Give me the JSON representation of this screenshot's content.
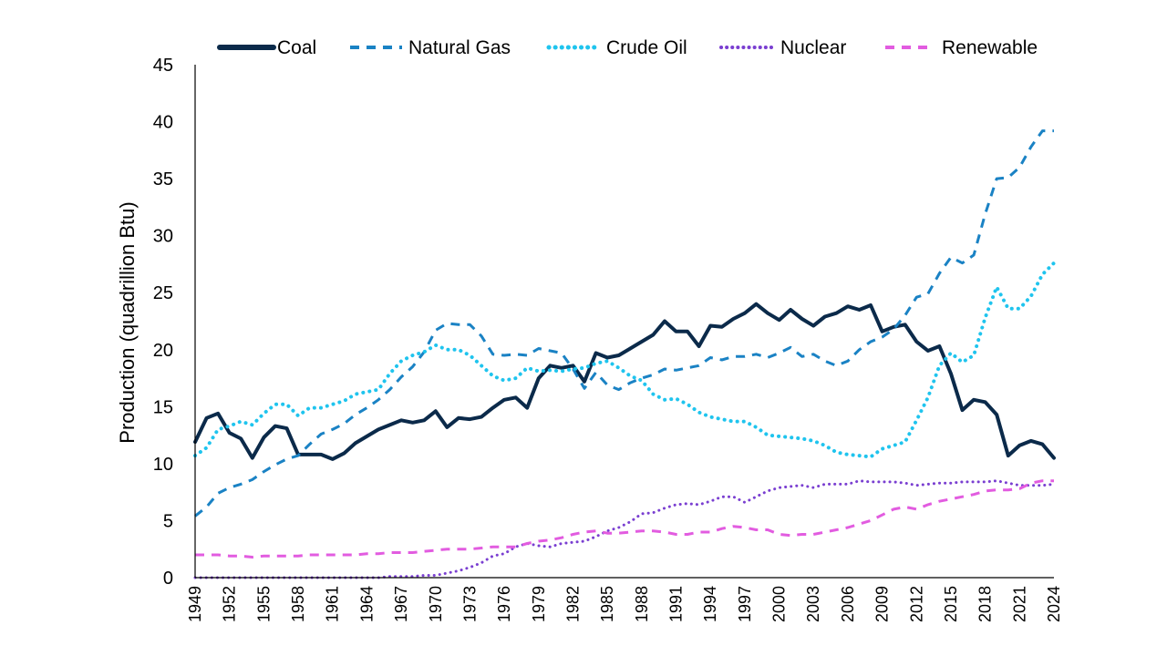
{
  "chart_data": {
    "type": "line",
    "title": "",
    "xlabel": "",
    "ylabel": "Production (quadrillion Btu)",
    "xlim": [
      1949,
      2024
    ],
    "ylim": [
      0,
      45
    ],
    "yticks": [
      0,
      5,
      10,
      15,
      20,
      25,
      30,
      35,
      40,
      45
    ],
    "xticks": [
      1949,
      1952,
      1955,
      1958,
      1961,
      1964,
      1967,
      1970,
      1973,
      1976,
      1979,
      1982,
      1985,
      1988,
      1991,
      1994,
      1997,
      2000,
      2003,
      2006,
      2009,
      2012,
      2015,
      2018,
      2021,
      2024
    ],
    "grid": false,
    "legend_position": "top",
    "x": [
      1949,
      1950,
      1951,
      1952,
      1953,
      1954,
      1955,
      1956,
      1957,
      1958,
      1959,
      1960,
      1961,
      1962,
      1963,
      1964,
      1965,
      1966,
      1967,
      1968,
      1969,
      1970,
      1971,
      1972,
      1973,
      1974,
      1975,
      1976,
      1977,
      1978,
      1979,
      1980,
      1981,
      1982,
      1983,
      1984,
      1985,
      1986,
      1987,
      1988,
      1989,
      1990,
      1991,
      1992,
      1993,
      1994,
      1995,
      1996,
      1997,
      1998,
      1999,
      2000,
      2001,
      2002,
      2003,
      2004,
      2005,
      2006,
      2007,
      2008,
      2009,
      2010,
      2011,
      2012,
      2013,
      2014,
      2015,
      2016,
      2017,
      2018,
      2019,
      2020,
      2021,
      2022,
      2023,
      2024
    ],
    "series": [
      {
        "name": "Coal",
        "color": "#0b2a4a",
        "dash": "solid",
        "values": [
          11.9,
          14.0,
          14.4,
          12.7,
          12.2,
          10.5,
          12.3,
          13.3,
          13.1,
          10.8,
          10.8,
          10.8,
          10.4,
          10.9,
          11.8,
          12.4,
          13.0,
          13.4,
          13.8,
          13.6,
          13.8,
          14.6,
          13.2,
          14.0,
          13.9,
          14.1,
          14.9,
          15.6,
          15.8,
          14.9,
          17.5,
          18.6,
          18.4,
          18.6,
          17.2,
          19.7,
          19.3,
          19.5,
          20.1,
          20.7,
          21.3,
          22.5,
          21.6,
          21.6,
          20.3,
          22.1,
          22.0,
          22.7,
          23.2,
          24.0,
          23.2,
          22.6,
          23.5,
          22.7,
          22.1,
          22.9,
          23.2,
          23.8,
          23.5,
          23.9,
          21.6,
          22.0,
          22.2,
          20.7,
          19.9,
          20.3,
          17.9,
          14.7,
          15.6,
          15.4,
          14.3,
          10.7,
          11.6,
          12.0,
          11.7,
          10.5
        ]
      },
      {
        "name": "Natural Gas",
        "color": "#1a82c4",
        "dash": "dashed",
        "values": [
          5.4,
          6.2,
          7.4,
          7.9,
          8.2,
          8.6,
          9.3,
          9.9,
          10.4,
          10.7,
          11.7,
          12.6,
          13.0,
          13.5,
          14.3,
          14.9,
          15.6,
          16.5,
          17.6,
          18.5,
          19.8,
          21.7,
          22.3,
          22.2,
          22.2,
          21.2,
          19.6,
          19.5,
          19.6,
          19.5,
          20.1,
          19.9,
          19.7,
          18.3,
          16.6,
          18.0,
          16.9,
          16.5,
          17.1,
          17.5,
          17.8,
          18.3,
          18.2,
          18.4,
          18.6,
          19.3,
          19.1,
          19.4,
          19.4,
          19.6,
          19.3,
          19.7,
          20.2,
          19.4,
          19.6,
          19.0,
          18.6,
          19.0,
          20.0,
          20.7,
          21.1,
          21.8,
          23.0,
          24.6,
          24.9,
          26.7,
          28.1,
          27.6,
          28.3,
          31.9,
          35.0,
          35.1,
          36.0,
          37.8,
          39.2,
          39.2
        ]
      },
      {
        "name": "Crude Oil",
        "color": "#1fc4ee",
        "dash": "dotted",
        "values": [
          10.7,
          11.4,
          13.0,
          13.3,
          13.7,
          13.4,
          14.4,
          15.2,
          15.2,
          14.2,
          14.9,
          14.9,
          15.2,
          15.5,
          16.1,
          16.3,
          16.5,
          17.9,
          19.0,
          19.5,
          19.8,
          20.4,
          20.0,
          20.0,
          19.5,
          18.6,
          17.7,
          17.3,
          17.5,
          18.4,
          18.1,
          18.2,
          18.1,
          18.3,
          18.4,
          18.8,
          19.0,
          18.4,
          17.7,
          17.3,
          16.1,
          15.6,
          15.7,
          15.2,
          14.5,
          14.1,
          13.9,
          13.7,
          13.7,
          13.2,
          12.5,
          12.4,
          12.3,
          12.2,
          12.0,
          11.6,
          11.0,
          10.8,
          10.7,
          10.6,
          11.3,
          11.6,
          11.9,
          13.8,
          15.8,
          18.6,
          19.7,
          18.9,
          19.5,
          22.8,
          25.5,
          23.6,
          23.6,
          24.7,
          26.6,
          27.6
        ]
      },
      {
        "name": "Nuclear",
        "color": "#7a3fd1",
        "dash": "dotted",
        "values": [
          0,
          0,
          0,
          0,
          0,
          0,
          0,
          0,
          0,
          0,
          0,
          0,
          0,
          0,
          0,
          0,
          0,
          0.1,
          0.1,
          0.1,
          0.2,
          0.2,
          0.4,
          0.6,
          0.9,
          1.3,
          1.9,
          2.1,
          2.7,
          3.0,
          2.8,
          2.7,
          3.0,
          3.1,
          3.2,
          3.6,
          4.1,
          4.4,
          4.9,
          5.6,
          5.7,
          6.1,
          6.4,
          6.5,
          6.4,
          6.7,
          7.1,
          7.1,
          6.6,
          7.1,
          7.6,
          7.9,
          8.0,
          8.1,
          7.9,
          8.2,
          8.2,
          8.2,
          8.5,
          8.4,
          8.4,
          8.4,
          8.3,
          8.1,
          8.2,
          8.3,
          8.3,
          8.4,
          8.4,
          8.4,
          8.5,
          8.3,
          8.1,
          8.1,
          8.1,
          8.2
        ]
      },
      {
        "name": "Renewable",
        "color": "#e25ce0",
        "dash": "dashed",
        "values": [
          2.0,
          2.0,
          2.0,
          1.9,
          1.9,
          1.8,
          1.9,
          1.9,
          1.9,
          1.9,
          2.0,
          2.0,
          2.0,
          2.0,
          2.0,
          2.1,
          2.1,
          2.2,
          2.2,
          2.2,
          2.3,
          2.4,
          2.5,
          2.5,
          2.5,
          2.6,
          2.7,
          2.7,
          2.7,
          3.0,
          3.2,
          3.3,
          3.5,
          3.8,
          4.0,
          4.1,
          3.9,
          3.9,
          4.0,
          4.1,
          4.1,
          4.0,
          3.8,
          3.8,
          4.0,
          4.0,
          4.3,
          4.5,
          4.4,
          4.2,
          4.2,
          3.8,
          3.7,
          3.8,
          3.8,
          4.0,
          4.2,
          4.4,
          4.7,
          5.0,
          5.5,
          6.0,
          6.2,
          6.0,
          6.4,
          6.7,
          6.9,
          7.1,
          7.3,
          7.6,
          7.7,
          7.7,
          7.8,
          8.3,
          8.5,
          8.5
        ]
      }
    ]
  }
}
